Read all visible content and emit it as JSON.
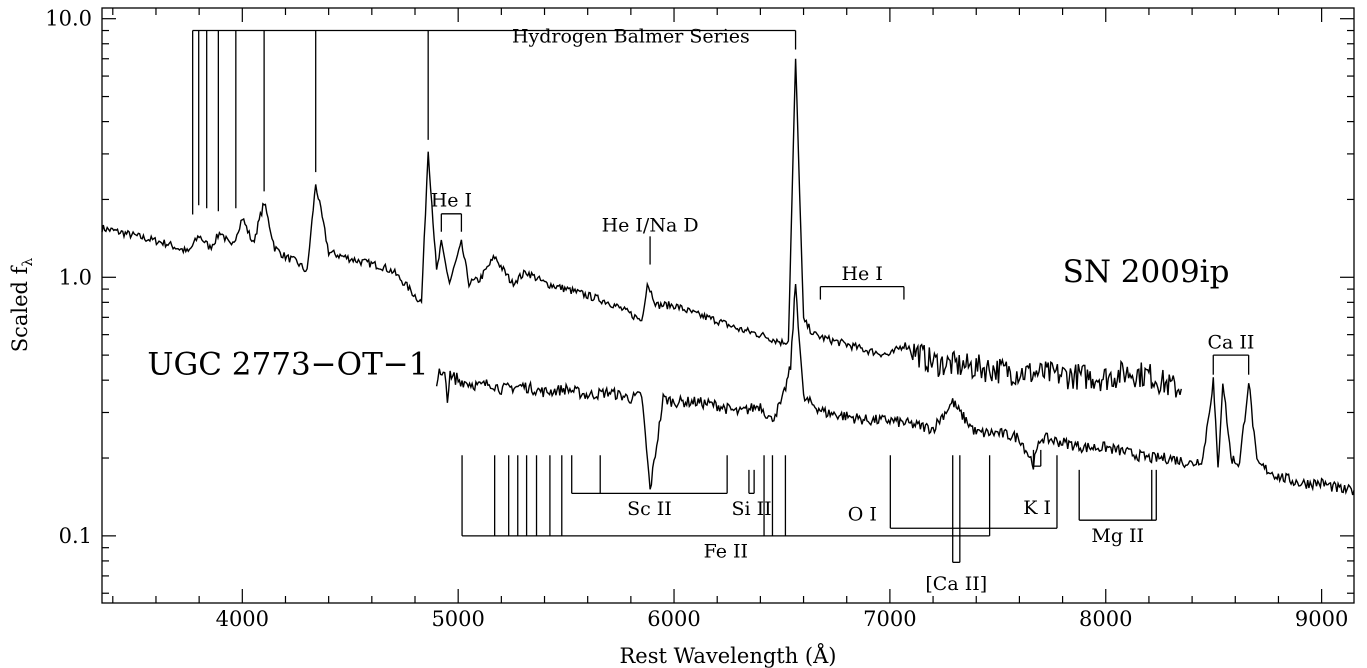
{
  "chart_data": {
    "type": "line",
    "title": "",
    "xlabel": "Rest Wavelength (Å)",
    "ylabel": "Scaled f",
    "ylabel_subscript": "λ",
    "xlim": [
      3350,
      9150
    ],
    "ylim": [
      0.055,
      11.0
    ],
    "y_scale": "log",
    "grid": false,
    "x_ticks": [
      {
        "value": 4000,
        "label": "4000"
      },
      {
        "value": 5000,
        "label": "5000"
      },
      {
        "value": 6000,
        "label": "6000"
      },
      {
        "value": 7000,
        "label": "7000"
      },
      {
        "value": 8000,
        "label": "8000"
      },
      {
        "value": 9000,
        "label": "9000"
      }
    ],
    "y_ticks": [
      {
        "value": 0.1,
        "label": "0.1"
      },
      {
        "value": 1.0,
        "label": "1.0"
      },
      {
        "value": 10.0,
        "label": "10.0"
      }
    ],
    "series": [
      {
        "name": "SN 2009ip",
        "label_position": {
          "x": 7800,
          "y": 0.96
        },
        "color": "#000000",
        "x": [
          3350,
          3500,
          3650,
          3750,
          3800,
          3850,
          3900,
          3950,
          4000,
          4050,
          4101,
          4150,
          4200,
          4250,
          4300,
          4340,
          4400,
          4471,
          4550,
          4650,
          4700,
          4750,
          4800,
          4830,
          4861,
          4900,
          4922,
          4960,
          5015,
          5050,
          5100,
          5169,
          5250,
          5316,
          5400,
          5500,
          5600,
          5700,
          5800,
          5850,
          5876,
          5920,
          6000,
          6100,
          6200,
          6300,
          6400,
          6500,
          6530,
          6563,
          6600,
          6650,
          6700,
          6800,
          6900,
          7000,
          7065,
          7200,
          7400,
          7600,
          7800,
          8000,
          8100,
          8200,
          8300,
          8350
        ],
        "values": [
          1.55,
          1.45,
          1.35,
          1.25,
          1.45,
          1.3,
          1.5,
          1.3,
          1.7,
          1.35,
          1.95,
          1.3,
          1.2,
          1.15,
          1.05,
          2.3,
          1.25,
          1.2,
          1.15,
          1.1,
          1.05,
          0.95,
          0.85,
          0.8,
          3.1,
          1.05,
          1.35,
          0.95,
          1.35,
          0.95,
          0.98,
          1.2,
          0.95,
          1.05,
          0.95,
          0.9,
          0.85,
          0.8,
          0.72,
          0.68,
          0.95,
          0.78,
          0.78,
          0.72,
          0.68,
          0.63,
          0.6,
          0.56,
          0.57,
          7.0,
          0.68,
          0.6,
          0.58,
          0.55,
          0.52,
          0.5,
          0.55,
          0.47,
          0.45,
          0.43,
          0.42,
          0.41,
          0.43,
          0.42,
          0.38,
          0.37
        ]
      },
      {
        "name": "UGC 2773−OT−1",
        "label_position": {
          "x": 3560,
          "y": 0.42
        },
        "color": "#000000",
        "x": [
          4900,
          4950,
          5000,
          5100,
          5150,
          5200,
          5300,
          5400,
          5500,
          5600,
          5700,
          5800,
          5850,
          5889,
          5950,
          6000,
          6100,
          6200,
          6300,
          6400,
          6450,
          6500,
          6540,
          6563,
          6600,
          6700,
          6800,
          6900,
          7000,
          7100,
          7200,
          7291,
          7324,
          7400,
          7500,
          7600,
          7665,
          7700,
          7800,
          7900,
          8000,
          8100,
          8200,
          8300,
          8400,
          8450,
          8498,
          8520,
          8542,
          8580,
          8620,
          8662,
          8700,
          8800,
          8900,
          9000,
          9100,
          9150
        ],
        "values": [
          0.42,
          0.38,
          0.4,
          0.38,
          0.39,
          0.37,
          0.38,
          0.36,
          0.37,
          0.35,
          0.36,
          0.34,
          0.35,
          0.15,
          0.34,
          0.33,
          0.33,
          0.32,
          0.3,
          0.32,
          0.28,
          0.33,
          0.45,
          0.95,
          0.34,
          0.3,
          0.29,
          0.28,
          0.28,
          0.27,
          0.26,
          0.33,
          0.3,
          0.25,
          0.25,
          0.24,
          0.19,
          0.24,
          0.23,
          0.22,
          0.22,
          0.21,
          0.2,
          0.2,
          0.19,
          0.2,
          0.4,
          0.18,
          0.4,
          0.2,
          0.19,
          0.4,
          0.19,
          0.17,
          0.16,
          0.16,
          0.15,
          0.15
        ]
      }
    ],
    "annotations": {
      "balmer": {
        "label": "Hydrogen Balmer Series",
        "label_x": 5800,
        "label_y": 8.1,
        "bar_y": 9.0,
        "x_start": 3770,
        "x_end": 6563,
        "lines": [
          {
            "x": 3770,
            "bottom": 1.75
          },
          {
            "x": 3798,
            "bottom": 1.9
          },
          {
            "x": 3835,
            "bottom": 1.85
          },
          {
            "x": 3889,
            "bottom": 1.8
          },
          {
            "x": 3970,
            "bottom": 1.85
          },
          {
            "x": 4101,
            "bottom": 2.15
          },
          {
            "x": 4340,
            "bottom": 2.55
          },
          {
            "x": 4861,
            "bottom": 3.4
          },
          {
            "x": 6563,
            "bottom": 7.6
          }
        ]
      },
      "brackets": [
        {
          "label": "He I",
          "x_start": 4922,
          "x_end": 5015,
          "y": 1.76,
          "tick_to": 1.5,
          "label_y": 1.98,
          "side": "top"
        },
        {
          "label": "He I",
          "x_start": 6678,
          "x_end": 7065,
          "y": 0.92,
          "tick_to": 0.82,
          "label_y": 1.03,
          "side": "top"
        },
        {
          "label": "Ca II",
          "x_start": 8498,
          "x_end": 8662,
          "y": 0.5,
          "tick_to": 0.42,
          "label_y": 0.56,
          "side": "top"
        },
        {
          "label": "Sc II",
          "x_start": 5526,
          "x_end": 6246,
          "y": 0.146,
          "tick_to": 0.205,
          "extra": [
            5658
          ],
          "label_y": 0.127,
          "side": "bottom"
        },
        {
          "label": "Si II",
          "x_start": 6347,
          "x_end": 6371,
          "y": 0.146,
          "tick_to": 0.18,
          "label_y": 0.127,
          "side": "bottom"
        },
        {
          "label": "Fe II",
          "x_start": 5018,
          "x_end": 7462,
          "y": 0.1,
          "tick_to": 0.205,
          "extra": [
            5169,
            5234,
            5276,
            5317,
            5363,
            5425,
            5480,
            6417,
            6456,
            6516
          ],
          "label_y": 0.087,
          "side": "bottom"
        },
        {
          "label": "O I",
          "x_start": 7002,
          "x_end": 7774,
          "y": 0.107,
          "tick_to": 0.205,
          "label_y": 0.121,
          "side": "bottom"
        },
        {
          "label": "K I",
          "x_start": 7665,
          "x_end": 7699,
          "y": 0.186,
          "tick_to": 0.215,
          "label_y": 0.128,
          "side": "bottom"
        },
        {
          "label": "[Ca II]",
          "x_start": 7291,
          "x_end": 7324,
          "y": 0.079,
          "tick_to": 0.205,
          "label_y": 0.065,
          "side": "bottom"
        },
        {
          "label": "Mg II",
          "x_start": 7877,
          "x_end": 8234,
          "y": 0.115,
          "tick_to": 0.18,
          "extra": [
            8213
          ],
          "label_y": 0.1,
          "side": "bottom"
        }
      ],
      "single_markers": [
        {
          "label": "He I/Na D",
          "x": 5889,
          "y_top": 1.44,
          "y_bottom": 1.12,
          "label_y": 1.5
        }
      ]
    }
  }
}
